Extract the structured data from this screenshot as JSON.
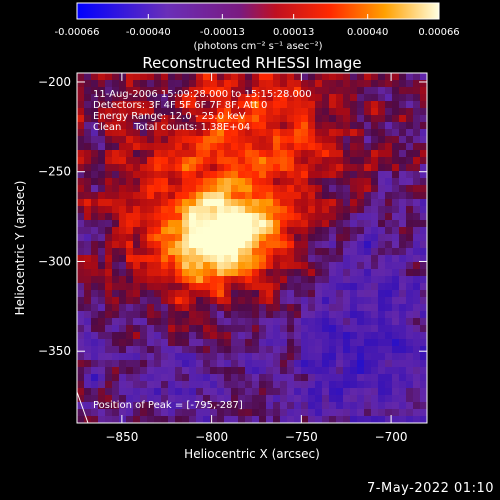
{
  "chart_data": {
    "type": "heatmap",
    "title": "Reconstructed RHESSI Image",
    "xlabel": "Heliocentric X (arcsec)",
    "ylabel": "Heliocentric Y (arcsec)",
    "xlim": [
      -875,
      -680
    ],
    "ylim": [
      -390,
      -195
    ],
    "x_ticks": [
      -850,
      -800,
      -750,
      -700
    ],
    "y_ticks": [
      -350,
      -300,
      -250,
      -200
    ],
    "colorbar": {
      "ticks": [
        -0.00066,
        -0.0004,
        -0.00013,
        0.00013,
        0.0004,
        0.00066
      ],
      "tick_labels": [
        "-0.00066",
        "-0.00040",
        "-0.00013",
        "0.00013",
        "0.00040",
        "0.00066"
      ],
      "unit_label": "(photons cm⁻² s⁻¹ asec⁻²)",
      "range": [
        -0.00066,
        0.00066
      ]
    },
    "info": {
      "time": "11-Aug-2006 15:09:28.000 to 15:15:28.000",
      "detectors": "Detectors: 3F 4F 5F 6F 7F 8F, Att 0",
      "energy": "Energy Range: 12.0 - 25.0 keV",
      "clean": "Clean    Total counts: 1.38E+04"
    },
    "peak_label": "Position of Peak = [-795,-287]",
    "peak": [
      -795,
      -287
    ],
    "colors": {
      "cold": "#0000ff",
      "mid": "#7030b0",
      "hot": "#ff4000",
      "peak": "#ffffc0"
    }
  },
  "footer": {
    "date": "7-May-2022 01:10"
  }
}
